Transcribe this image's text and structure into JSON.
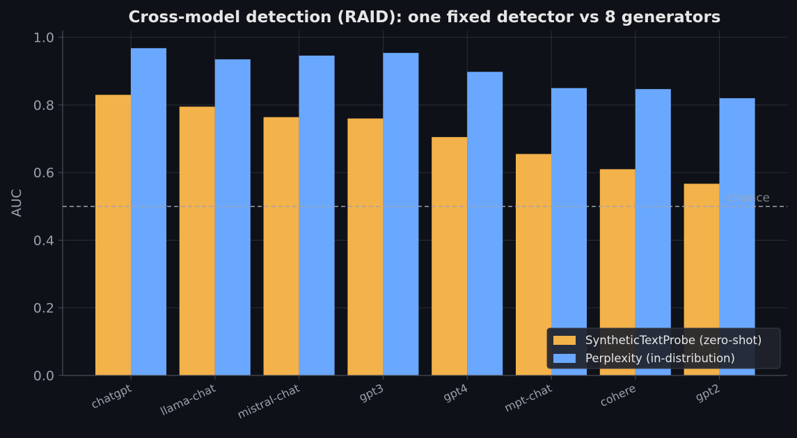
{
  "colors": {
    "background": "#0e1117",
    "grid": "#2c2f38",
    "axis": "#4a4e58",
    "text": "#e6e6e6",
    "tick_text": "#9aa0ad",
    "chance_line": "#a0a4ad",
    "legend_bg": "#1f232b",
    "legend_border": "#3a3e48"
  },
  "chart_data": {
    "type": "bar",
    "title": "Cross-model detection (RAID): one fixed detector vs 8 generators",
    "xlabel": "",
    "ylabel": "AUC",
    "ylim": [
      0,
      1.02
    ],
    "yticks": [
      "0.0",
      "0.2",
      "0.4",
      "0.6",
      "0.8",
      "1.0"
    ],
    "ytick_values": [
      0,
      0.2,
      0.4,
      0.6,
      0.8,
      1.0
    ],
    "grid": true,
    "categories": [
      "chatgpt",
      "llama-chat",
      "mistral-chat",
      "gpt3",
      "gpt4",
      "mpt-chat",
      "cohere",
      "gpt2"
    ],
    "series": [
      {
        "name": "SyntheticTextProbe (zero-shot)",
        "color": "#f4b24b",
        "values": [
          0.83,
          0.795,
          0.764,
          0.76,
          0.705,
          0.655,
          0.61,
          0.567
        ]
      },
      {
        "name": "Perplexity (in-distribution)",
        "color": "#6aa8ff",
        "values": [
          0.968,
          0.935,
          0.946,
          0.954,
          0.898,
          0.85,
          0.847,
          0.82
        ]
      }
    ],
    "reference_line": {
      "value": 0.5,
      "label": "chance"
    },
    "legend_position": "bottom-right"
  }
}
